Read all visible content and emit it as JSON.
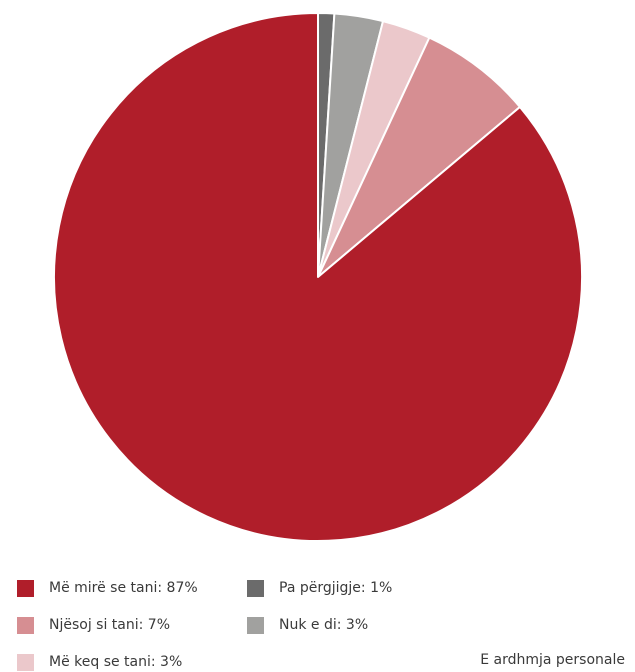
{
  "chart_data": {
    "type": "pie",
    "title": "",
    "slices": [
      {
        "label": "Më mirë se tani: 87%",
        "value": 87,
        "color": "#b01e2a"
      },
      {
        "label": "Njësoj si tani: 7%",
        "value": 7,
        "color": "#d68e92"
      },
      {
        "label": "Më keq se tani: 3%",
        "value": 3,
        "color": "#ebc8cb"
      },
      {
        "label": "Pa përgjigje: 1%",
        "value": 1,
        "color": "#6b6b6b"
      },
      {
        "label": "Nuk e di: 3%",
        "value": 3,
        "color": "#a1a19f"
      }
    ],
    "legend": "bottom-left"
  },
  "caption": "E ardhmja personale"
}
